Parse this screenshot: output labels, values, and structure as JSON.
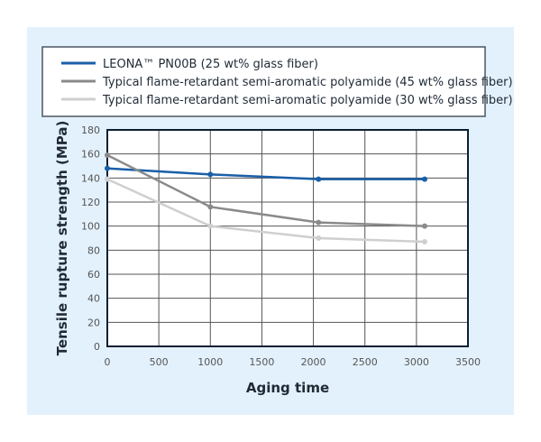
{
  "chart_data": {
    "type": "line",
    "title": "",
    "xlabel": "Aging time",
    "ylabel": "Tensile rupture strength (MPa)",
    "xlim": [
      0,
      3500
    ],
    "ylim": [
      0,
      180
    ],
    "xticks": [
      0,
      500,
      1000,
      1500,
      2000,
      2500,
      3000,
      3500
    ],
    "yticks": [
      0,
      20,
      40,
      60,
      80,
      100,
      120,
      140,
      160,
      180
    ],
    "grid": true,
    "legend_placement": "top",
    "x": [
      0,
      1000,
      2050,
      3080
    ],
    "series": [
      {
        "name": "LEONA™ PN00B (25 wt% glass fiber)",
        "color": "#1a5fa8",
        "values": [
          148,
          143,
          139,
          139
        ]
      },
      {
        "name": "Typical flame-retardant semi-aromatic polyamide (45 wt% glass fiber)",
        "color": "#8a8a8a",
        "values": [
          159,
          116,
          103,
          100
        ]
      },
      {
        "name": "Typical flame-retardant semi-aromatic polyamide (30 wt% glass fiber)",
        "color": "#cfcfcf",
        "values": [
          139,
          100,
          90,
          87
        ]
      }
    ]
  }
}
